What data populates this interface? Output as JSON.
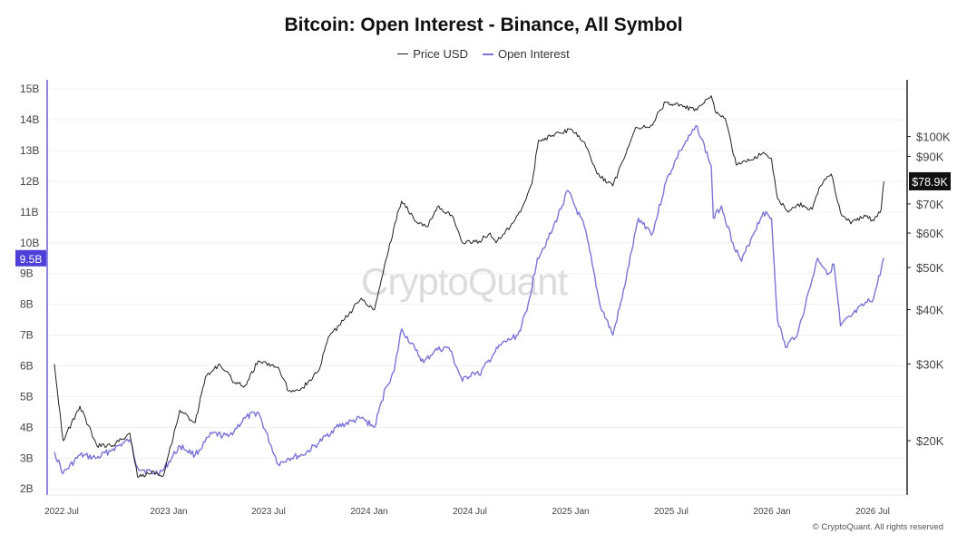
{
  "chart_data": {
    "type": "line",
    "title": "Bitcoin: Open Interest - Binance, All Symbol",
    "legend": [
      "Price USD",
      "Open Interest"
    ],
    "legend_position": "top-center",
    "grid": true,
    "x_ticks": [
      "2022 Jul",
      "2023 Jan",
      "2023 Jul",
      "2024 Jan",
      "2024 Jul",
      "2025 Jan",
      "2025 Jul",
      "2026 Jan",
      "2026 Jul"
    ],
    "x_range": [
      "2022-06",
      "2026-09"
    ],
    "left_axis": {
      "ticks": [
        "2B",
        "3B",
        "4B",
        "5B",
        "6B",
        "7B",
        "8B",
        "9B",
        "10B",
        "11B",
        "12B",
        "13B",
        "14B",
        "15B"
      ],
      "range": [
        1.8,
        15.3
      ],
      "current_label": "9.5B",
      "current_value": 9.5,
      "highlight_color": "#4e3fd8"
    },
    "right_axis": {
      "scale": "log",
      "ticks": [
        "$20K",
        "$30K",
        "$40K",
        "$50K",
        "$60K",
        "$70K",
        "$90K",
        "$100K"
      ],
      "tick_values": [
        20000,
        30000,
        40000,
        50000,
        60000,
        70000,
        90000,
        100000
      ],
      "range": [
        15000,
        135000
      ],
      "current_label": "$78.9K",
      "current_value": 78900
    },
    "series": [
      {
        "name": "Price USD",
        "axis": "right",
        "color": "#222222",
        "x": [
          "2022-06-15",
          "2022-07-01",
          "2022-08-01",
          "2022-09-01",
          "2022-10-01",
          "2022-11-01",
          "2022-11-15",
          "2022-12-15",
          "2023-01-01",
          "2023-02-01",
          "2023-03-01",
          "2023-03-20",
          "2023-04-15",
          "2023-05-15",
          "2023-06-01",
          "2023-06-25",
          "2023-08-01",
          "2023-08-20",
          "2023-09-15",
          "2023-10-15",
          "2023-11-01",
          "2023-12-01",
          "2024-01-01",
          "2024-01-25",
          "2024-02-15",
          "2024-03-10",
          "2024-03-15",
          "2024-04-15",
          "2024-05-01",
          "2024-05-20",
          "2024-06-15",
          "2024-07-05",
          "2024-08-05",
          "2024-08-25",
          "2024-09-05",
          "2024-10-01",
          "2024-10-20",
          "2024-11-10",
          "2024-11-22",
          "2024-12-15",
          "2025-01-20",
          "2025-02-15",
          "2025-03-10",
          "2025-04-08",
          "2025-05-20",
          "2025-06-15",
          "2025-07-14",
          "2025-08-15",
          "2025-09-10",
          "2025-10-06",
          "2025-10-15",
          "2025-11-01",
          "2025-11-21",
          "2025-12-15",
          "2026-01-10",
          "2026-01-25",
          "2026-02-05",
          "2026-02-25",
          "2026-03-15",
          "2026-04-10",
          "2026-04-25",
          "2026-05-15",
          "2026-06-01",
          "2026-06-20",
          "2026-07-15",
          "2026-08-01",
          "2026-08-15",
          "2026-08-20"
        ],
        "values": [
          30000,
          20000,
          24000,
          19500,
          19500,
          20800,
          16500,
          17000,
          16600,
          23500,
          22000,
          28000,
          30000,
          27000,
          26800,
          30500,
          29500,
          26000,
          26500,
          29000,
          34500,
          38000,
          42500,
          40000,
          52000,
          68000,
          71000,
          63000,
          62000,
          69000,
          66000,
          57000,
          57500,
          60000,
          57000,
          62000,
          67000,
          78000,
          98000,
          100000,
          104000,
          97000,
          82000,
          77000,
          105000,
          105000,
          120000,
          117000,
          115000,
          124000,
          113000,
          110000,
          86000,
          88000,
          92000,
          89000,
          72000,
          67000,
          70000,
          68000,
          77000,
          82000,
          67000,
          63000,
          66000,
          64000,
          68000,
          78900
        ]
      },
      {
        "name": "Open Interest",
        "axis": "left",
        "color": "#7b74d6",
        "x": [
          "2022-06-15",
          "2022-07-01",
          "2022-08-01",
          "2022-09-01",
          "2022-10-01",
          "2022-11-01",
          "2022-11-15",
          "2022-12-15",
          "2023-01-01",
          "2023-02-01",
          "2023-03-01",
          "2023-04-01",
          "2023-05-01",
          "2023-06-01",
          "2023-06-25",
          "2023-08-01",
          "2023-08-20",
          "2023-09-15",
          "2023-10-15",
          "2023-11-15",
          "2023-12-15",
          "2024-01-01",
          "2024-01-25",
          "2024-02-15",
          "2024-03-01",
          "2024-03-15",
          "2024-04-10",
          "2024-04-25",
          "2024-05-15",
          "2024-06-10",
          "2024-07-05",
          "2024-07-25",
          "2024-08-05",
          "2024-09-01",
          "2024-09-15",
          "2024-10-15",
          "2024-11-01",
          "2024-11-20",
          "2024-12-15",
          "2025-01-15",
          "2025-02-15",
          "2025-03-01",
          "2025-03-15",
          "2025-04-08",
          "2025-04-25",
          "2025-05-25",
          "2025-06-20",
          "2025-07-15",
          "2025-08-10",
          "2025-09-10",
          "2025-10-06",
          "2025-10-10",
          "2025-10-25",
          "2025-11-15",
          "2025-12-01",
          "2025-12-20",
          "2026-01-10",
          "2026-01-25",
          "2026-02-05",
          "2026-02-20",
          "2026-03-15",
          "2026-04-05",
          "2026-04-20",
          "2026-05-10",
          "2026-05-20",
          "2026-06-01",
          "2026-06-20",
          "2026-07-15",
          "2026-08-01",
          "2026-08-20"
        ],
        "values": [
          3.2,
          2.5,
          3.1,
          3.0,
          3.3,
          3.6,
          2.7,
          2.5,
          2.6,
          3.4,
          3.1,
          3.8,
          3.7,
          4.3,
          4.5,
          2.8,
          3.0,
          3.1,
          3.5,
          4.0,
          4.2,
          4.3,
          4.0,
          5.3,
          5.8,
          7.2,
          6.5,
          6.1,
          6.5,
          6.6,
          5.5,
          5.8,
          5.7,
          6.4,
          6.7,
          7.0,
          7.8,
          9.5,
          10.3,
          11.7,
          10.5,
          9.3,
          8.0,
          7.0,
          8.2,
          10.8,
          10.3,
          12.0,
          13.0,
          13.8,
          12.5,
          10.8,
          11.2,
          10.0,
          9.4,
          10.2,
          11.0,
          10.8,
          7.5,
          6.6,
          7.1,
          8.5,
          9.5,
          9.0,
          9.3,
          7.3,
          7.6,
          8.0,
          8.2,
          9.5
        ]
      }
    ]
  },
  "watermark": "CryptoQuant",
  "copyright": "© CryptoQuant. All rights reserved"
}
